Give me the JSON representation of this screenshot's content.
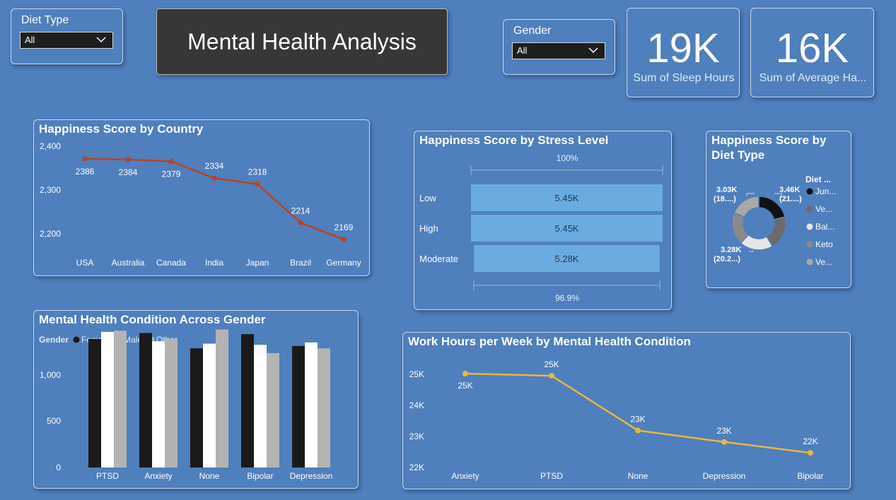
{
  "diet_slicer": {
    "title": "Diet Type",
    "value": "All"
  },
  "report_title": "Mental Health Analysis",
  "gender_slicer": {
    "title": "Gender",
    "value": "All"
  },
  "kpis": [
    {
      "value": "19K",
      "label": "Sum of Sleep Hours"
    },
    {
      "value": "16K",
      "label": "Sum of Average Ha..."
    }
  ],
  "country_chart": {
    "title": "Happiness Score by Country",
    "ytick_labels": [
      "2,400",
      "2,300",
      "2,200"
    ],
    "data_labels": [
      "2386",
      "2384",
      "2379",
      "2334",
      "2318",
      "2214",
      "2169"
    ]
  },
  "stress_chart": {
    "title": "Happiness Score by Stress Level",
    "top_label": "100%",
    "bottom_label": "96.9%",
    "value_labels": [
      "5.45K",
      "5.45K",
      "5.28K"
    ]
  },
  "diet_chart": {
    "title_line1": "Happiness Score by",
    "title_line2": "Diet Type",
    "legend_title": "Diet ...",
    "legend_items": [
      "Jun...",
      "Ve...",
      "Bal...",
      "Keto",
      "Ve..."
    ],
    "callouts": [
      {
        "line1": "3.03K",
        "line2": "(18....)"
      },
      {
        "line1": "3.46K",
        "line2": "(21....)"
      },
      {
        "line1": "3.28K",
        "line2": "(20.2...)"
      }
    ]
  },
  "gender_chart": {
    "title": "Mental Health Condition Across Gender",
    "legend_title": "Gender",
    "ytick_labels": [
      "1,000",
      "500",
      "0"
    ]
  },
  "work_chart": {
    "title": "Work Hours per Week by Mental Health Condition",
    "ytick_labels": [
      "25K",
      "24K",
      "23K",
      "22K"
    ],
    "data_labels": [
      "25K",
      "25K",
      "23K",
      "23K",
      "22K"
    ]
  },
  "chart_data": [
    {
      "type": "line",
      "title": "Happiness Score by Country",
      "categories": [
        "USA",
        "Australia",
        "Canada",
        "India",
        "Japan",
        "Brazil",
        "Germany"
      ],
      "values": [
        2386,
        2384,
        2379,
        2334,
        2318,
        2214,
        2169
      ],
      "ylim": [
        2150,
        2420
      ],
      "color": "#c0401f"
    },
    {
      "type": "bar",
      "title": "Happiness Score by Stress Level",
      "categories": [
        "Low",
        "High",
        "Moderate"
      ],
      "values": [
        5450,
        5450,
        5280
      ],
      "color": "#6aace0"
    },
    {
      "type": "pie",
      "title": "Happiness Score by Diet Type",
      "categories": [
        "Jun...",
        "Ve...",
        "Bal...",
        "Keto",
        "Ve..."
      ],
      "values": [
        3.46,
        3.3,
        3.28,
        3.2,
        3.03
      ],
      "colors": [
        "#111111",
        "#6b6b6b",
        "#e6e6e6",
        "#8a8a8a",
        "#a9a9a9"
      ]
    },
    {
      "type": "bar",
      "title": "Mental Health Condition Across Gender",
      "categories": [
        "PTSD",
        "Anxiety",
        "None",
        "Bipolar",
        "Depression"
      ],
      "series": [
        {
          "name": "Female",
          "values": [
            1090,
            1140,
            1010,
            1130,
            1030
          ],
          "color": "#1a1a1a"
        },
        {
          "name": "Male",
          "values": [
            1150,
            1070,
            1050,
            1040,
            1060
          ],
          "color": "#ffffff"
        },
        {
          "name": "Other",
          "values": [
            1160,
            1090,
            1170,
            970,
            1010
          ],
          "color": "#b3b3b3"
        }
      ],
      "ylim": [
        0,
        1250
      ]
    },
    {
      "type": "line",
      "title": "Work Hours per Week by Mental Health Condition",
      "categories": [
        "Anxiety",
        "PTSD",
        "None",
        "Depression",
        "Bipolar"
      ],
      "values": [
        25000,
        24930,
        23170,
        22800,
        22450
      ],
      "ylim": [
        22000,
        25000
      ],
      "color": "#e8b93c"
    }
  ]
}
